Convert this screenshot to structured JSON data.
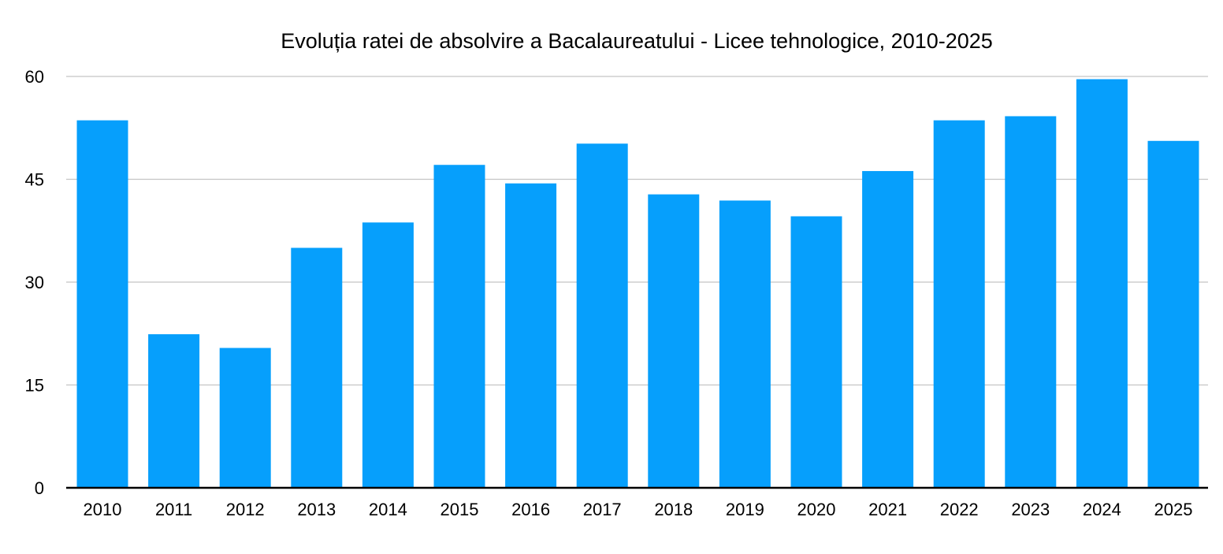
{
  "chart_data": {
    "type": "bar",
    "title": "Evoluția ratei de absolvire a Bacalaureatului - Licee tehnologice, 2010-2025",
    "xlabel": "",
    "ylabel": "",
    "categories": [
      "2010",
      "2011",
      "2012",
      "2013",
      "2014",
      "2015",
      "2016",
      "2017",
      "2018",
      "2019",
      "2020",
      "2021",
      "2022",
      "2023",
      "2024",
      "2025"
    ],
    "values": [
      53.6,
      22.4,
      20.4,
      35.0,
      38.7,
      47.1,
      44.4,
      50.2,
      42.8,
      41.9,
      39.6,
      46.2,
      53.6,
      54.2,
      59.6,
      50.6
    ],
    "yticks": [
      0,
      15,
      30,
      45,
      60
    ],
    "ylim": [
      0,
      60
    ],
    "grid": true,
    "legend": "none",
    "bar_color": "#069ffc"
  }
}
